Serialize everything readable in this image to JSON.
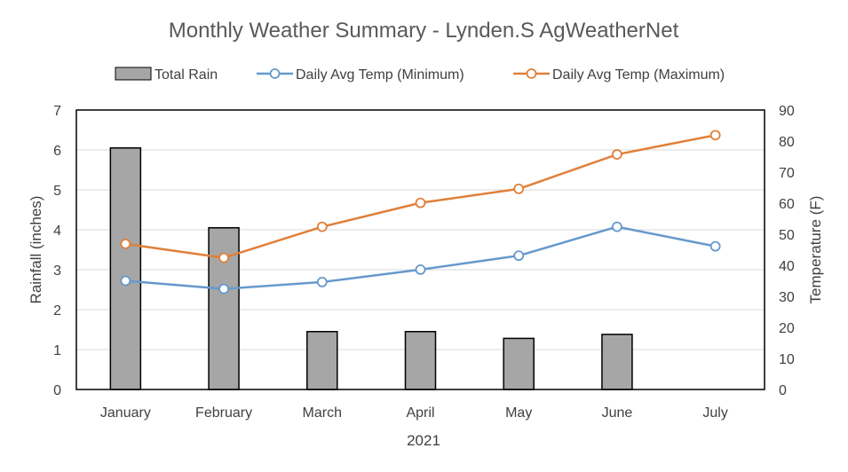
{
  "chart_data": {
    "type": "bar+line",
    "title": "Monthly Weather Summary - Lynden.S AgWeatherNet",
    "categories": [
      "January",
      "February",
      "March",
      "April",
      "May",
      "June",
      "July"
    ],
    "xlabel": "2021",
    "ylabel_left": "Rainfall (inches)",
    "ylabel_right": "Temperature (F)",
    "ylim_left": [
      0,
      7
    ],
    "yticks_left": [
      "0",
      "1",
      "2",
      "3",
      "4",
      "5",
      "6",
      "7"
    ],
    "ylim_right": [
      0,
      90
    ],
    "yticks_right": [
      "0",
      "10",
      "20",
      "30",
      "40",
      "50",
      "60",
      "70",
      "80",
      "90"
    ],
    "grid": true,
    "legend_position": "top",
    "series": [
      {
        "name": "Total Rain",
        "type": "bar",
        "axis": "left",
        "color": "#a6a6a6",
        "values": [
          6.05,
          4.05,
          1.45,
          1.45,
          1.28,
          1.38,
          null
        ]
      },
      {
        "name": "Daily Avg Temp (Minimum)",
        "type": "line",
        "axis": "right",
        "color": "#6699cc",
        "values": [
          35.0,
          32.4,
          34.6,
          38.6,
          43.1,
          52.4,
          46.1
        ]
      },
      {
        "name": "Daily Avg Temp (Maximum)",
        "type": "line",
        "axis": "right",
        "color": "#e0803a",
        "values": [
          46.9,
          42.4,
          52.4,
          60.1,
          64.6,
          75.7,
          81.9
        ]
      }
    ]
  }
}
